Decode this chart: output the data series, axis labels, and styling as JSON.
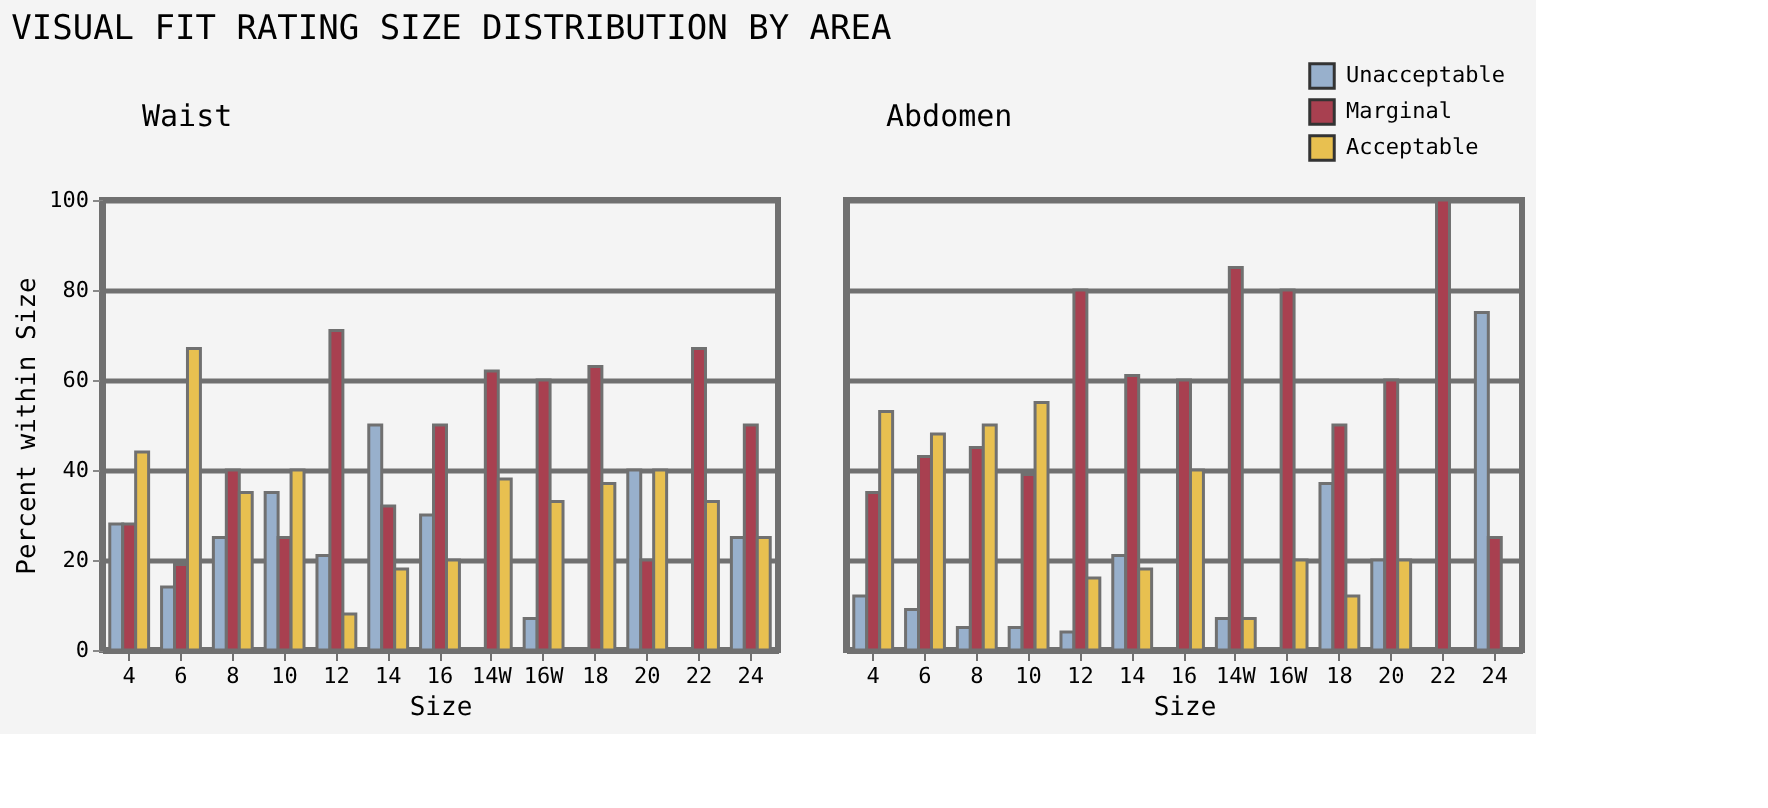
{
  "chart_data": [
    {
      "type": "other",
      "title": "VISUAL FIT RATING SIZE DISTRIBUTION BY AREA"
    },
    {
      "type": "bar",
      "title": "Waist",
      "xlabel": "Size",
      "ylabel": "Percent within Size",
      "categories": [
        "4",
        "6",
        "8",
        "10",
        "12",
        "14",
        "16",
        "14W",
        "16W",
        "18",
        "20",
        "22",
        "24"
      ],
      "series": [
        {
          "color": "#98b0cc",
          "values": [
            28,
            14,
            25,
            35,
            21,
            50,
            30,
            null,
            7,
            null,
            40,
            null,
            25
          ]
        },
        {
          "color": "#a84050",
          "values": [
            28,
            19,
            40,
            25,
            71,
            32,
            50,
            62,
            60,
            63,
            20,
            67,
            50
          ]
        },
        {
          "color": "#e8c050",
          "values": [
            44,
            67,
            35,
            40,
            8,
            18,
            20,
            38,
            33,
            37,
            40,
            33,
            25
          ]
        }
      ],
      "ylim": [
        0,
        100
      ],
      "yticks": [
        0,
        20,
        40,
        60,
        80,
        100
      ],
      "grid": "y"
    },
    {
      "type": "bar",
      "title": "Abdomen",
      "xlabel": "Size",
      "categories": [
        "4",
        "6",
        "8",
        "10",
        "12",
        "14",
        "16",
        "14W",
        "16W",
        "18",
        "20",
        "22",
        "24"
      ],
      "series": [
        {
          "name": "Unacceptable",
          "color": "#98b0cc",
          "values": [
            12,
            9,
            5,
            5,
            4,
            21,
            null,
            7,
            null,
            37,
            20,
            null,
            75
          ]
        },
        {
          "name": "Marginal",
          "color": "#a84050",
          "values": [
            35,
            43,
            45,
            39,
            80,
            61,
            60,
            85,
            80,
            50,
            60,
            100,
            25
          ]
        },
        {
          "name": "Acceptable",
          "color": "#e8c050",
          "values": [
            53,
            48,
            50,
            55,
            16,
            18,
            40,
            7,
            20,
            12,
            20,
            null,
            null
          ]
        }
      ],
      "ylim": [
        0,
        100
      ],
      "yticks": [
        0,
        20,
        40,
        60,
        80,
        100
      ],
      "grid": "y",
      "legend": "top right",
      "tick_labels": "x"
    }
  ]
}
